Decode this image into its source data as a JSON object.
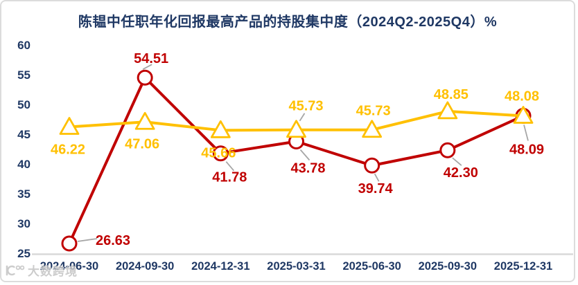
{
  "chart_data": {
    "type": "line",
    "title": "陈韫中任职年化回报最高产品的持股集中度（2024Q2-2025Q4）%",
    "categories": [
      "2024-06-30",
      "2024-09-30",
      "2024-12-31",
      "2025-03-31",
      "2025-06-30",
      "2025-09-30",
      "2025-12-31"
    ],
    "series": [
      {
        "name": "red-series",
        "marker": "circle",
        "color": "#C00000",
        "values": [
          26.63,
          54.51,
          41.78,
          43.78,
          39.74,
          42.3,
          48.09
        ]
      },
      {
        "name": "gold-series",
        "marker": "triangle",
        "color": "#FFC000",
        "values": [
          46.22,
          47.06,
          45.66,
          45.73,
          45.73,
          48.85,
          48.08
        ]
      }
    ],
    "ylim": [
      25,
      60
    ],
    "y_ticks": [
      25,
      30,
      35,
      40,
      45,
      50,
      55,
      60
    ],
    "grid": false,
    "legend": "none",
    "axis_label_color": "#1f3864",
    "axis_line_color": "#d9d9d9",
    "leader_line_color": "#a6a6a6",
    "background": "#ffffff"
  },
  "watermark": {
    "text": "大数跨境"
  }
}
